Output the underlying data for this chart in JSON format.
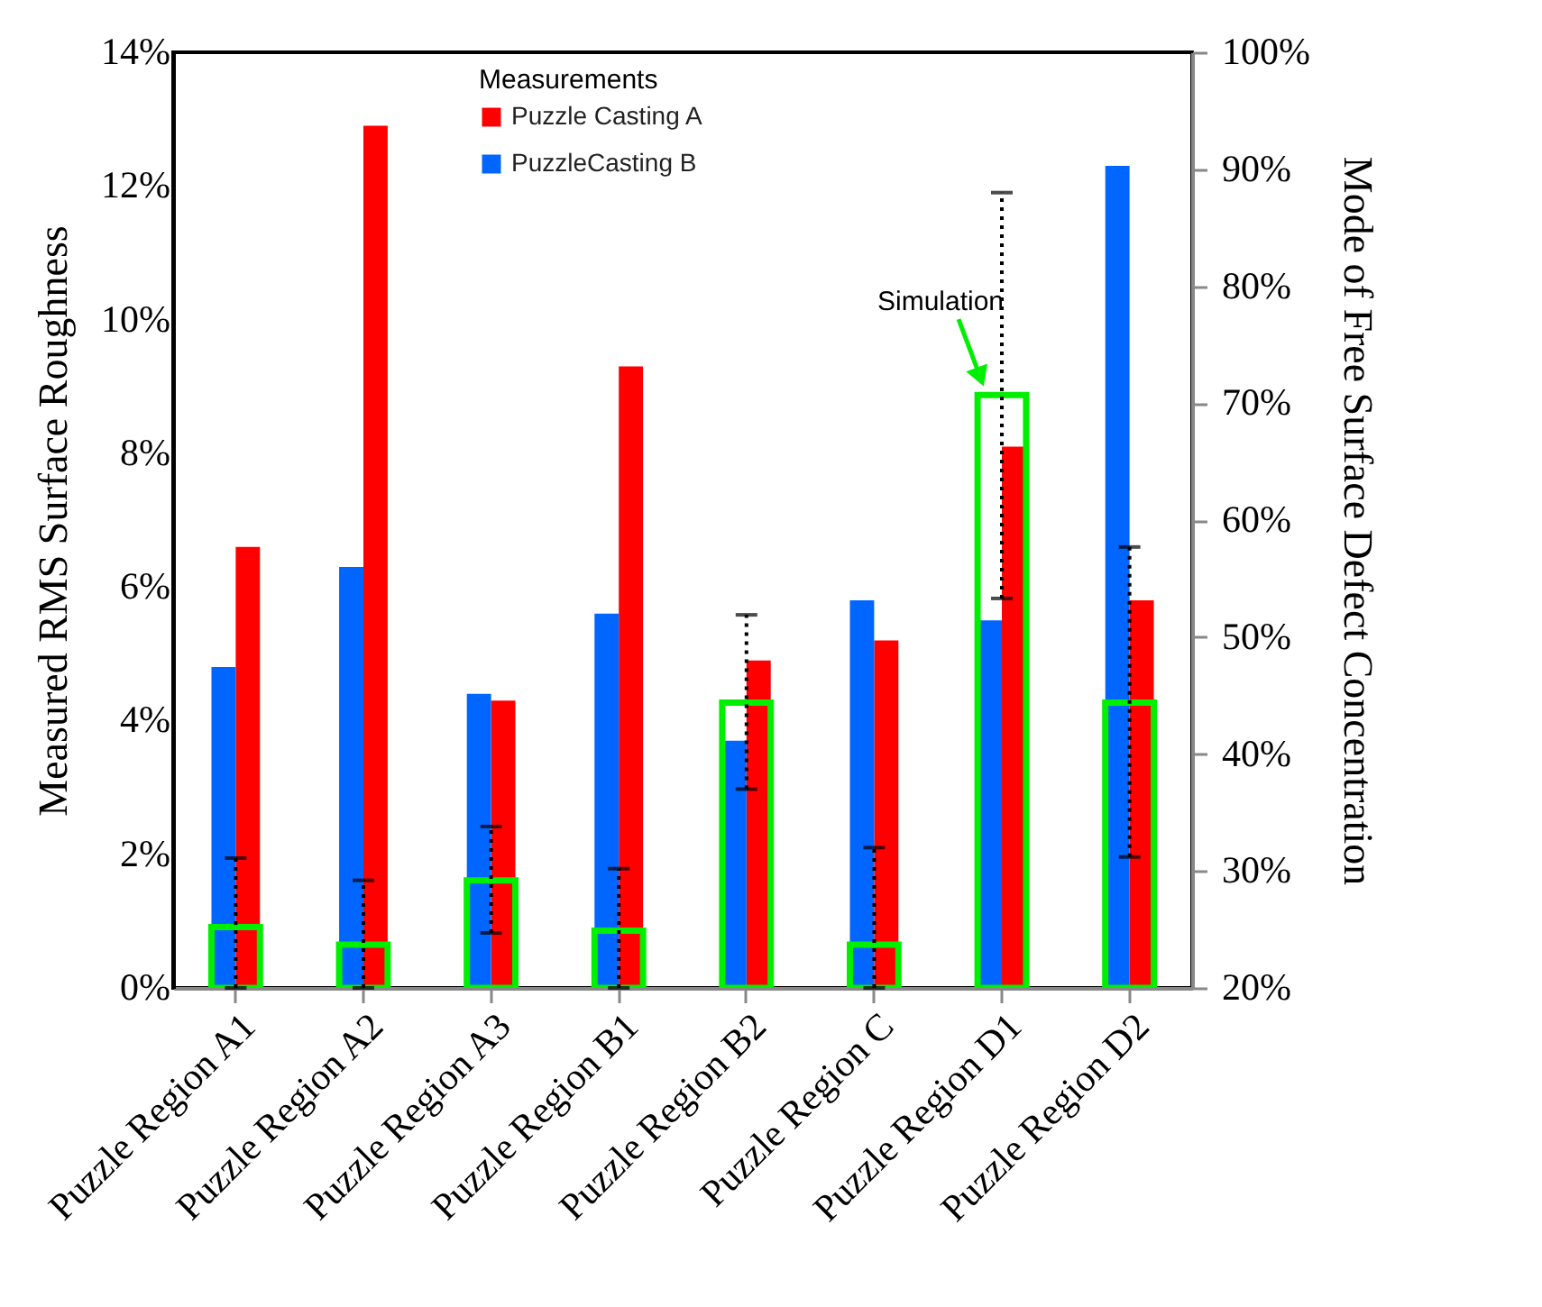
{
  "chart_data": {
    "type": "bar",
    "xlabel": null,
    "ylabel": "Measured RMS Surface Roughness",
    "y2label": "Mode of Free Surface Defect Concentration",
    "legend_title": "Measurements",
    "legend": "top",
    "categories": [
      "Puzzle Region A1",
      "Puzzle Region A2",
      "Puzzle Region A3",
      "Puzzle Region B1",
      "Puzzle Region B2",
      "Puzzle Region C",
      "Puzzle Region D1",
      "Puzzle Region D2"
    ],
    "series": [
      {
        "name": "Puzzle Casting A",
        "color": "#ff0000",
        "values": [
          6.6,
          12.9,
          4.3,
          9.3,
          4.9,
          5.2,
          8.1,
          5.8
        ]
      },
      {
        "name": "PuzzleCasting B",
        "color": "#0066ff",
        "values": [
          4.8,
          6.3,
          4.4,
          5.6,
          3.7,
          5.8,
          5.5,
          12.3
        ]
      },
      {
        "name": "Simulation",
        "type": "bar",
        "axis": "y2",
        "color": "#00ee00",
        "values": [
          25.2,
          23.7,
          29.2,
          24.9,
          44.4,
          23.7,
          70.7,
          44.4
        ],
        "errors": [
          [
            20,
            31.1
          ],
          [
            20,
            29.2
          ],
          [
            24.7,
            33.8
          ],
          [
            20,
            30.2
          ],
          [
            37,
            51.9
          ],
          [
            20,
            32
          ],
          [
            53.3,
            88
          ],
          [
            31.2,
            57.7
          ]
        ]
      }
    ],
    "ylim": [
      0,
      14
    ],
    "yticks": [
      {
        "value": 0,
        "label": "0%"
      },
      {
        "value": 2,
        "label": "2%"
      },
      {
        "value": 4,
        "label": "4%"
      },
      {
        "value": 6,
        "label": "6%"
      },
      {
        "value": 8,
        "label": "8%"
      },
      {
        "value": 10,
        "label": "10%"
      },
      {
        "value": 12,
        "label": "12%"
      },
      {
        "value": 14,
        "label": "14%"
      }
    ],
    "y2lim": [
      20,
      100
    ],
    "y2ticks": [
      {
        "value": 20,
        "label": "20%"
      },
      {
        "value": 30,
        "label": "30%"
      },
      {
        "value": 40,
        "label": "40%"
      },
      {
        "value": 50,
        "label": "50%"
      },
      {
        "value": 60,
        "label": "60%"
      },
      {
        "value": 70,
        "label": "70%"
      },
      {
        "value": 80,
        "label": "80%"
      },
      {
        "value": 90,
        "label": "90%"
      },
      {
        "value": 100,
        "label": "100%"
      }
    ],
    "grid": false
  }
}
